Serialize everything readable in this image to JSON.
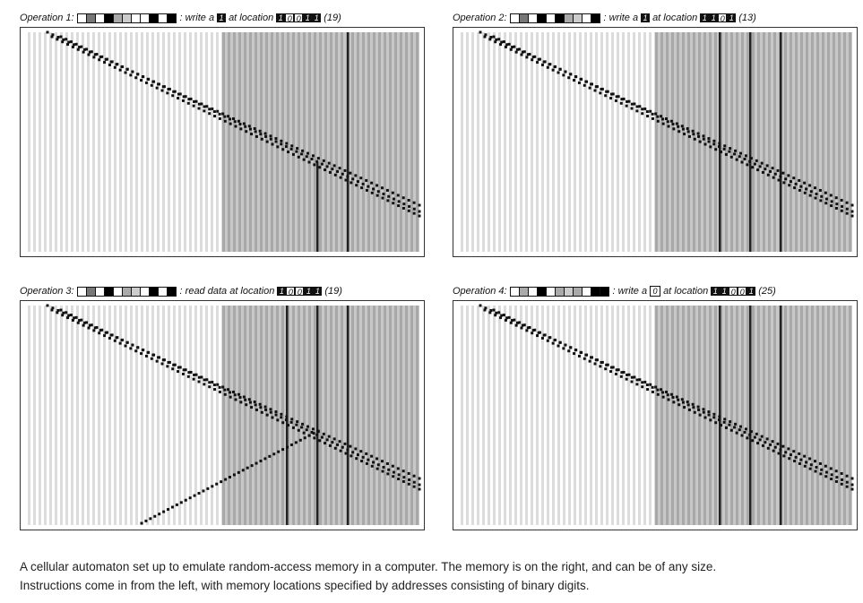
{
  "panels": [
    {
      "label": "Operation 1:",
      "instruction_cells": [
        "#fff",
        "#777",
        "#fff",
        "#000",
        "#aaa",
        "#ccc",
        "#fff",
        "#fff",
        "#000",
        "#fff",
        "#000"
      ],
      "action_text": ": write a",
      "bit_value": "1",
      "bit_style": "dark",
      "location_prefix": "at location",
      "location_bits": [
        "1",
        "0",
        "0",
        "1",
        "1"
      ],
      "location_text": "10011",
      "location_decimal": "(19)",
      "read_line": false
    },
    {
      "label": "Operation 2:",
      "instruction_cells": [
        "#fff",
        "#777",
        "#fff",
        "#000",
        "#fff",
        "#000",
        "#aaa",
        "#ccc",
        "#fff",
        "#000"
      ],
      "action_text": ": write a",
      "bit_value": "1",
      "bit_style": "dark",
      "location_prefix": "at location",
      "location_bits": [
        "1",
        "1",
        "0",
        "1"
      ],
      "location_text": "1101",
      "location_decimal": "(13)",
      "read_line": false
    },
    {
      "label": "Operation 3:",
      "instruction_cells": [
        "#fff",
        "#777",
        "#fff",
        "#000",
        "#fff",
        "#aaa",
        "#ccc",
        "#fff",
        "#000",
        "#fff",
        "#000"
      ],
      "action_text": ": read data at location",
      "bit_value": "",
      "bit_style": "none",
      "location_prefix": "",
      "location_bits": [
        "1",
        "0",
        "0",
        "1",
        "1"
      ],
      "location_text": "10011",
      "location_decimal": "(19)",
      "read_line": true
    },
    {
      "label": "Operation 4:",
      "instruction_cells": [
        "#fff",
        "#aaa",
        "#fff",
        "#000",
        "#fff",
        "#aaa",
        "#ccc",
        "#aaa",
        "#fff",
        "#000",
        "#000"
      ],
      "action_text": ": write a",
      "bit_value": "0",
      "bit_style": "light",
      "location_prefix": "at location",
      "location_bits": [
        "1",
        "1",
        "0",
        "0",
        "1"
      ],
      "location_text": "11001",
      "location_decimal": "(25)",
      "read_line": false
    }
  ],
  "caption": {
    "line1": "A cellular automaton set up to emulate random-access memory in a computer. The memory is on the right, and can be of any size.",
    "line2": "Instructions come in from the left, with memory locations specified by addresses consisting of binary digits."
  },
  "colors": {
    "light_stripe": "#dcdcdc",
    "memory_stripe": "#a8a8a8",
    "memory_bg": "#c8c8c8",
    "dark_line": "#222222",
    "diagonal": "#111111"
  }
}
